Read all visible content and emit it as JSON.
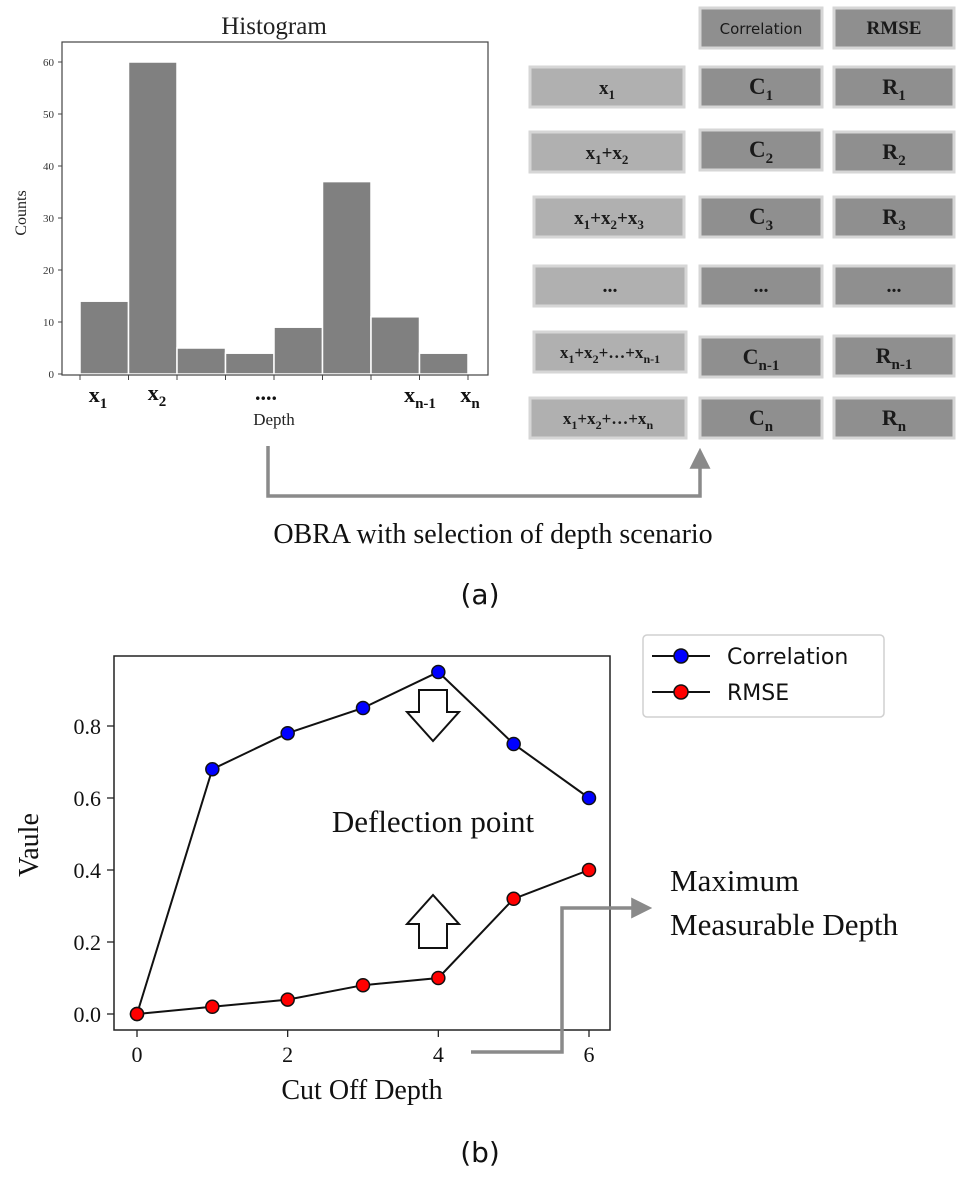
{
  "panel_a": {
    "caption": "(a)",
    "flow_label": "OBRA with selection of depth scenario",
    "table": {
      "headers": [
        "Correlation",
        "RMSE"
      ],
      "rows": [
        {
          "sum": "x1",
          "c": "C1",
          "r": "R1"
        },
        {
          "sum": "x1+x2",
          "c": "C2",
          "r": "R2"
        },
        {
          "sum": "x1+x2+x3",
          "c": "C3",
          "r": "R3"
        },
        {
          "sum": "...",
          "c": "...",
          "r": "..."
        },
        {
          "sum": "x1+x2+...+xn-1",
          "c": "Cn-1",
          "r": "Rn-1"
        },
        {
          "sum": "x1+x2+...+xn",
          "c": "Cn",
          "r": "Rn"
        }
      ]
    }
  },
  "panel_b": {
    "caption": "(b)",
    "annotation_deflection": "Deflection point",
    "annotation_max_line1": "Maximum",
    "annotation_max_line2": "Measurable Depth"
  },
  "chart_data": [
    {
      "type": "bar",
      "title": "Histogram",
      "xlabel": "Depth",
      "ylabel": "Counts",
      "ylim": [
        0,
        60
      ],
      "yticks": [
        0,
        10,
        20,
        30,
        40,
        50,
        60
      ],
      "values": [
        14,
        60,
        5,
        4,
        9,
        37,
        11,
        4
      ],
      "x_tick_labels": [
        "x1",
        "x2",
        "....",
        "xn-1",
        "xn"
      ],
      "bar_color": "#808080"
    },
    {
      "type": "line",
      "xlabel": "Cut Off Depth",
      "ylabel": "Vaule",
      "xlim": [
        0,
        6
      ],
      "ylim": [
        0,
        0.95
      ],
      "xticks": [
        0,
        2,
        4,
        6
      ],
      "yticks": [
        "0.0",
        "0.2",
        "0.4",
        "0.6",
        "0.8"
      ],
      "x": [
        0,
        1,
        2,
        3,
        4,
        5,
        6
      ],
      "series": [
        {
          "name": "Correlation",
          "color": "#0000ff",
          "values": [
            0.0,
            0.68,
            0.78,
            0.85,
            0.95,
            0.75,
            0.6
          ]
        },
        {
          "name": "RMSE",
          "color": "#ff0000",
          "values": [
            0.0,
            0.02,
            0.04,
            0.08,
            0.1,
            0.32,
            0.4
          ]
        }
      ],
      "legend": "top-right outside"
    }
  ]
}
